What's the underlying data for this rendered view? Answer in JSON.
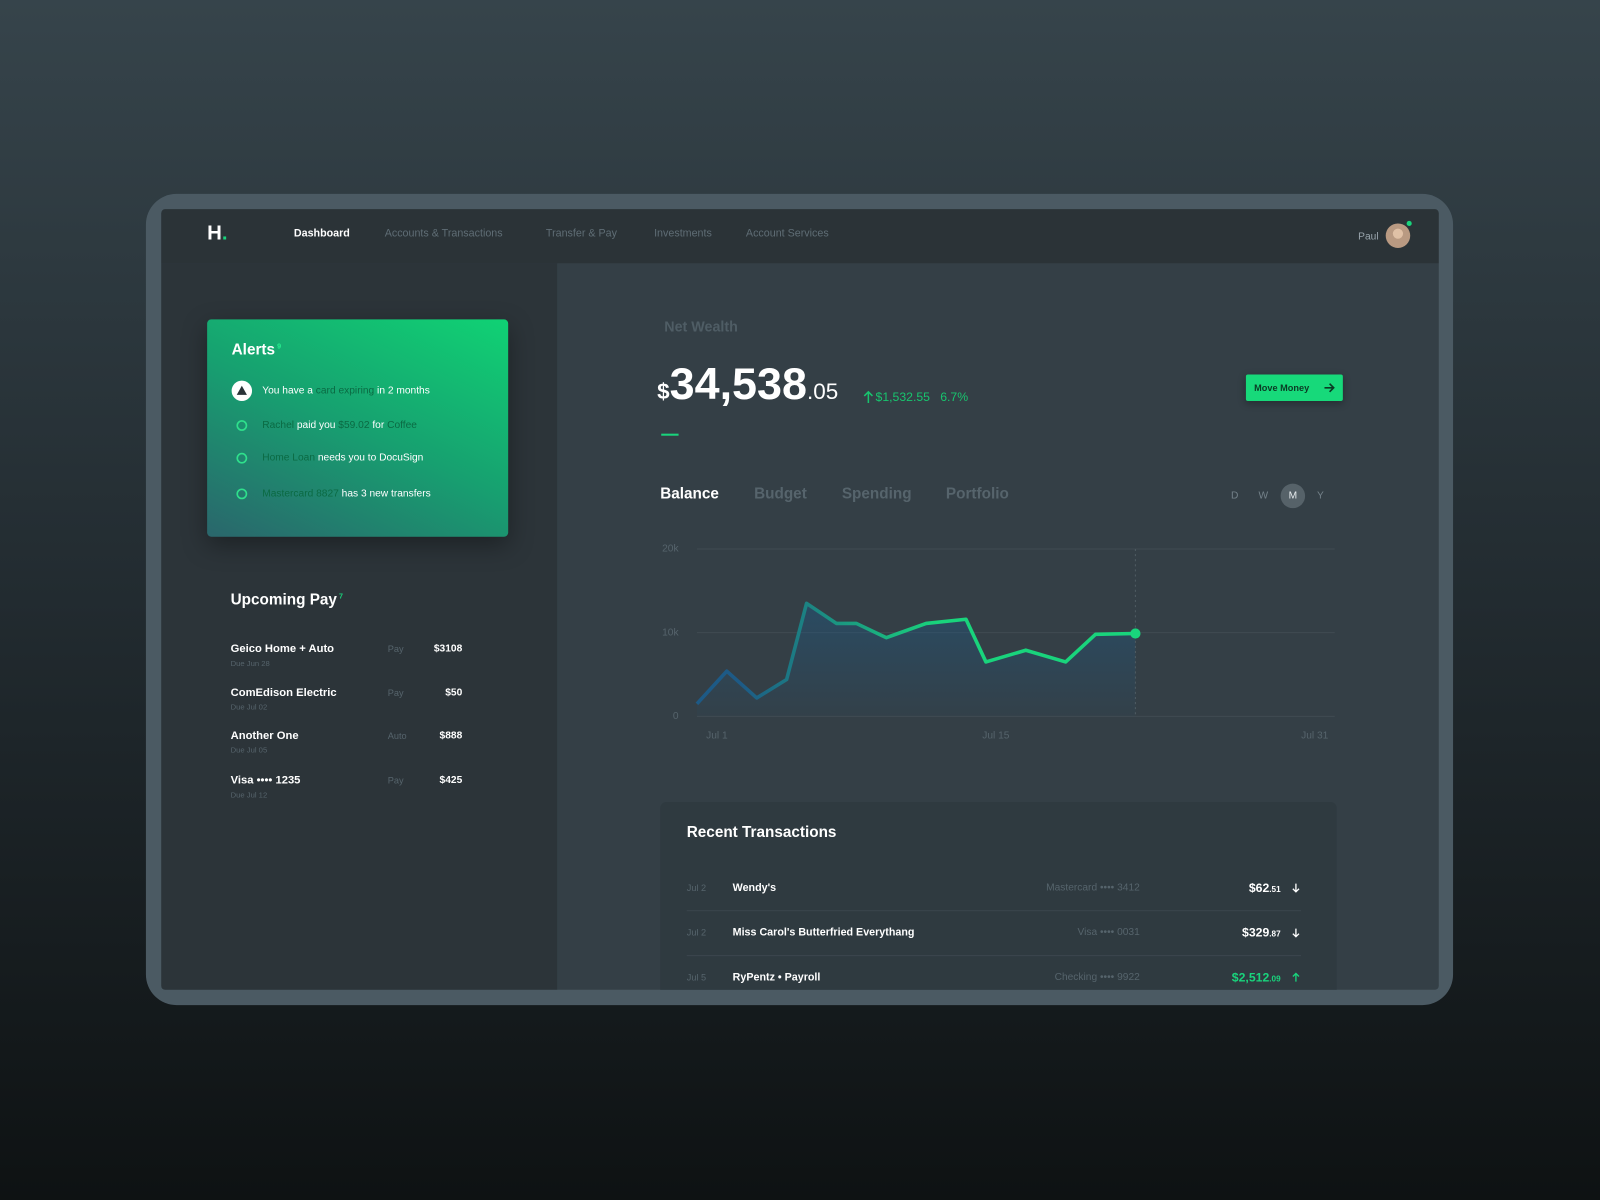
{
  "nav": {
    "logo": "H",
    "logo_dot": ".",
    "items": [
      "Dashboard",
      "Accounts & Transactions",
      "Transfer & Pay",
      "Investments",
      "Account Services"
    ],
    "active": 0,
    "user": "Paul"
  },
  "alerts": {
    "title": "Alerts",
    "count": "9",
    "items": [
      [
        {
          "text": "You have a "
        },
        {
          "text": "card expiring",
          "highlight": true
        },
        {
          "text": " in 2 months"
        }
      ],
      [
        {
          "text": "Rachel",
          "highlight": true
        },
        {
          "text": " paid you "
        },
        {
          "text": "$59.02",
          "highlight": true
        },
        {
          "text": " for "
        },
        {
          "text": "Coffee",
          "highlight": true
        }
      ],
      [
        {
          "text": "Home Loan",
          "highlight": true
        },
        {
          "text": " needs you to DocuSign"
        }
      ],
      [
        {
          "text": "Mastercard 8827",
          "highlight": true
        },
        {
          "text": " has 3 new transfers"
        }
      ]
    ]
  },
  "upcoming_pay": {
    "title": "Upcoming Pay",
    "count": "7",
    "items": [
      {
        "name": "Geico Home + Auto",
        "due": "Due Jun 28",
        "method": "Pay",
        "amount": "$3108"
      },
      {
        "name": "ComEdison Electric",
        "due": "Due Jul 02",
        "method": "Pay",
        "amount": "$50"
      },
      {
        "name": "Another One",
        "due": "Due Jul 05",
        "method": "Auto",
        "amount": "$888"
      },
      {
        "name": "Visa •••• 1235",
        "due": "Due Jul 12",
        "method": "Pay",
        "amount": "$425"
      }
    ]
  },
  "net_wealth": {
    "label": "Net Wealth",
    "currency": "$",
    "whole": "34,538",
    "cents": ".05",
    "change_amount": "$1,532.55",
    "change_percent": "6.7%",
    "button": "Move Money"
  },
  "tabs": {
    "items": [
      "Balance",
      "Budget",
      "Spending",
      "Portfolio"
    ],
    "active": 0
  },
  "periods": {
    "items": [
      "D",
      "W",
      "M",
      "Y"
    ],
    "active": 2
  },
  "chart_data": {
    "type": "line",
    "x": [
      0,
      1.5,
      3,
      4.5,
      5.5,
      7,
      8,
      9.5,
      11.5,
      13.5,
      14.5,
      16.5,
      18.5,
      20,
      22
    ],
    "values": [
      1500,
      5400,
      2200,
      4400,
      13500,
      11100,
      11100,
      9400,
      11100,
      11600,
      6500,
      7900,
      6500,
      9800,
      9900
    ],
    "colors": [
      "#1d5a86",
      "#19d47c"
    ],
    "xlim": [
      0,
      32
    ],
    "xticks": [
      {
        "value": 1,
        "label": "Jul 1"
      },
      {
        "value": 15,
        "label": "Jul 15"
      },
      {
        "value": 31,
        "label": "Jul 31"
      }
    ],
    "ylim": [
      0,
      20000
    ],
    "yticks": [
      {
        "value": 0,
        "label": "0"
      },
      {
        "value": 10000,
        "label": "10k"
      },
      {
        "value": 20000,
        "label": "20k"
      }
    ],
    "grid": true
  },
  "recent_transactions": {
    "title": "Recent Transactions",
    "rows": [
      {
        "date": "Jul 2",
        "merchant": "Wendy's",
        "account": "Mastercard •••• 3412",
        "amount": "$62",
        "cents": ".51",
        "direction": "out"
      },
      {
        "date": "Jul 2",
        "merchant": "Miss Carol's Butterfried Everythang",
        "account": "Visa •••• 0031",
        "amount": "$329",
        "cents": ".87",
        "direction": "out"
      },
      {
        "date": "Jul 5",
        "merchant": "RyPentz • Payroll",
        "account": "Checking •••• 9922",
        "amount": "$2,512",
        "cents": ".09",
        "direction": "in"
      }
    ]
  }
}
